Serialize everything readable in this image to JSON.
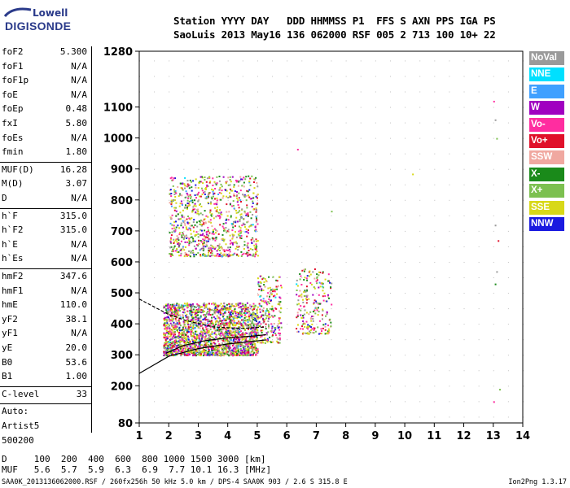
{
  "logo": {
    "brand_top": "Lowell",
    "brand_bottom": "DIGISONDE"
  },
  "header": {
    "labels_line": "Station YYYY DAY   DDD HHMMSS P1  FFS S AXN PPS IGA PS",
    "values_line": "SaoLuis 2013 May16 136 062000 RSF 005 2 713 100 10+ 22"
  },
  "params": [
    {
      "key": "foF2",
      "value": "5.300"
    },
    {
      "key": "foF1",
      "value": "N/A"
    },
    {
      "key": "foF1p",
      "value": "N/A"
    },
    {
      "key": "foE",
      "value": "N/A"
    },
    {
      "key": "foEp",
      "value": "0.48"
    },
    {
      "key": "fxI",
      "value": "5.80"
    },
    {
      "key": "foEs",
      "value": "N/A"
    },
    {
      "key": "fmin",
      "value": "1.80"
    },
    {
      "key": "MUF(D)",
      "value": "16.28"
    },
    {
      "key": "M(D)",
      "value": "3.07"
    },
    {
      "key": "D",
      "value": "N/A"
    },
    {
      "key": "h`F",
      "value": "315.0"
    },
    {
      "key": "h`F2",
      "value": "315.0"
    },
    {
      "key": "h`E",
      "value": "N/A"
    },
    {
      "key": "h`Es",
      "value": "N/A"
    },
    {
      "key": "hmF2",
      "value": "347.6"
    },
    {
      "key": "hmF1",
      "value": "N/A"
    },
    {
      "key": "hmE",
      "value": "110.0"
    },
    {
      "key": "yF2",
      "value": "38.1"
    },
    {
      "key": "yF1",
      "value": "N/A"
    },
    {
      "key": "yE",
      "value": "20.0"
    },
    {
      "key": "B0",
      "value": "53.6"
    },
    {
      "key": "B1",
      "value": "1.00"
    },
    {
      "key": "C-level",
      "value": "33"
    },
    {
      "key": "Auto:",
      "value": ""
    },
    {
      "key": "Artist5",
      "value": ""
    },
    {
      "key": "500200",
      "value": ""
    }
  ],
  "legend": [
    {
      "label": "NoVal",
      "color": "#9a9a9a"
    },
    {
      "label": "NNE",
      "color": "#00e0ff"
    },
    {
      "label": "E",
      "color": "#3fa0ff"
    },
    {
      "label": "W",
      "color": "#a000c0"
    },
    {
      "label": "Vo-",
      "color": "#ff2da0"
    },
    {
      "label": "Vo+",
      "color": "#e0102a"
    },
    {
      "label": "SSW",
      "color": "#f0a8a0"
    },
    {
      "label": "X-",
      "color": "#1a8a1a"
    },
    {
      "label": "X+",
      "color": "#7cc050"
    },
    {
      "label": "SSE",
      "color": "#d8d818"
    },
    {
      "label": "NNW",
      "color": "#1a1ae0"
    }
  ],
  "bottom": {
    "line1": "D     100  200  400  600  800 1000 1500 3000 [km]",
    "line2": "MUF   5.6  5.7  5.9  6.3  6.9  7.7 10.1 16.3 [MHz]",
    "file_info": "SAA0K_2013136062000.RSF / 260fx256h 50 kHz 5.0 km / DPS-4 SAA0K 903 / 2.6 S 315.8 E",
    "version": "Ion2Png 1.3.17"
  },
  "chart_data": {
    "type": "scatter",
    "x_ticks": [
      "1",
      "2",
      "3",
      "4",
      "5",
      "6",
      "7",
      "8",
      "9",
      "10",
      "11",
      "12",
      "13",
      "14"
    ],
    "y_ticks": [
      "80",
      "200",
      "300",
      "400",
      "500",
      "600",
      "700",
      "800",
      "900",
      "1000",
      "1100",
      "1280"
    ],
    "xlim": [
      1,
      14
    ],
    "ylim": [
      80,
      1280
    ],
    "clusters": [
      {
        "x": [
          1.8,
          5.0
        ],
        "y": [
          300,
          470
        ],
        "density": 2200
      },
      {
        "x": [
          2.0,
          5.0
        ],
        "y": [
          620,
          880
        ],
        "density": 900
      },
      {
        "x": [
          5.0,
          5.8
        ],
        "y": [
          340,
          560
        ],
        "density": 220
      },
      {
        "x": [
          6.3,
          7.5
        ],
        "y": [
          370,
          580
        ],
        "density": 220
      }
    ],
    "isolated_points": [
      {
        "x": 6.35,
        "y": 965
      },
      {
        "x": 7.5,
        "y": 765
      },
      {
        "x": 10.25,
        "y": 885
      },
      {
        "x": 13.05,
        "y": 1060
      },
      {
        "x": 13.1,
        "y": 1000
      },
      {
        "x": 13.1,
        "y": 570
      },
      {
        "x": 13.05,
        "y": 530
      },
      {
        "x": 13.15,
        "y": 670
      },
      {
        "x": 13.0,
        "y": 150
      },
      {
        "x": 13.2,
        "y": 190
      },
      {
        "x": 13.0,
        "y": 1120
      },
      {
        "x": 13.05,
        "y": 720
      }
    ],
    "curves": [
      {
        "name": "virtual-height-profile",
        "x": [
          1,
          2,
          3,
          4,
          5,
          5.3
        ],
        "y": [
          240,
          295,
          320,
          335,
          345,
          348
        ]
      },
      {
        "name": "trace-upper",
        "x": [
          1,
          2,
          2.6,
          3.5,
          4.5,
          5.3
        ],
        "y": [
          480,
          430,
          410,
          390,
          385,
          390
        ]
      },
      {
        "name": "trace-lower",
        "x": [
          1.9,
          2.5,
          3.2,
          4.0,
          4.8,
          5.3
        ],
        "y": [
          305,
          330,
          345,
          355,
          360,
          365
        ]
      }
    ]
  }
}
